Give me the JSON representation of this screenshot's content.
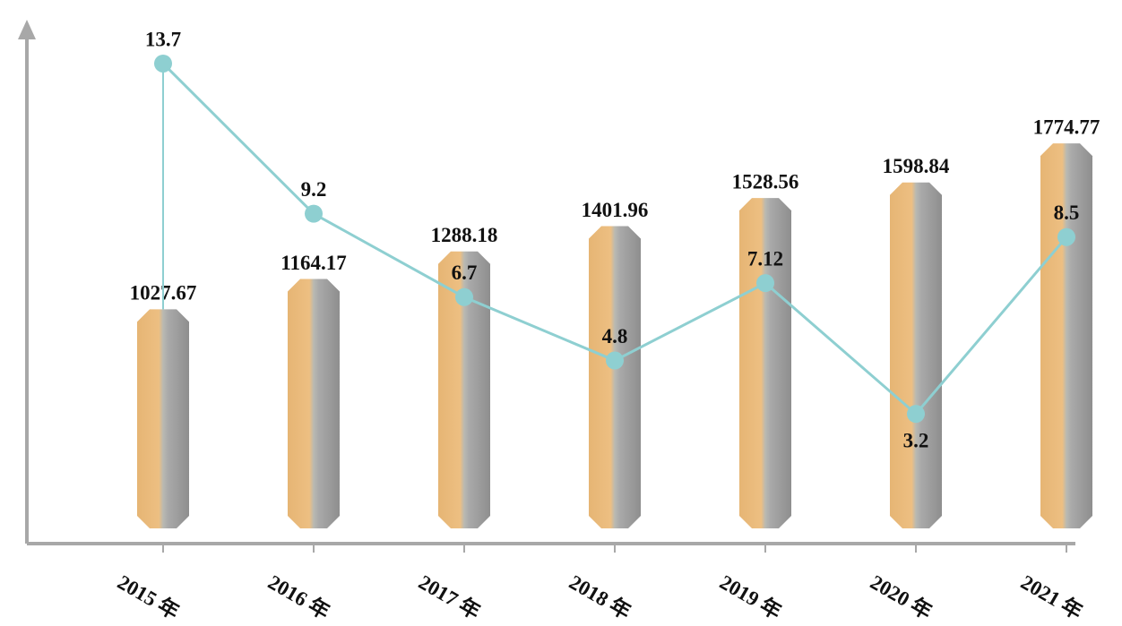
{
  "chart_data": {
    "type": "bar",
    "categories": [
      "2015 年",
      "2016 年",
      "2017 年",
      "2018 年",
      "2019 年",
      "2020 年",
      "2021 年"
    ],
    "series": [
      {
        "type": "bar",
        "color": "#e9b877",
        "values": [
          1027.67,
          1164.17,
          1288.18,
          1401.96,
          1528.56,
          1598.84,
          1774.77
        ]
      },
      {
        "type": "line",
        "axis": "y2",
        "color": "#8ecfd1",
        "values": [
          13.7,
          9.2,
          6.7,
          4.8,
          7.12,
          3.2,
          8.5
        ]
      }
    ],
    "ylim": [
      0,
      2300
    ],
    "y2lim": [
      -0.5,
      14.8
    ]
  }
}
